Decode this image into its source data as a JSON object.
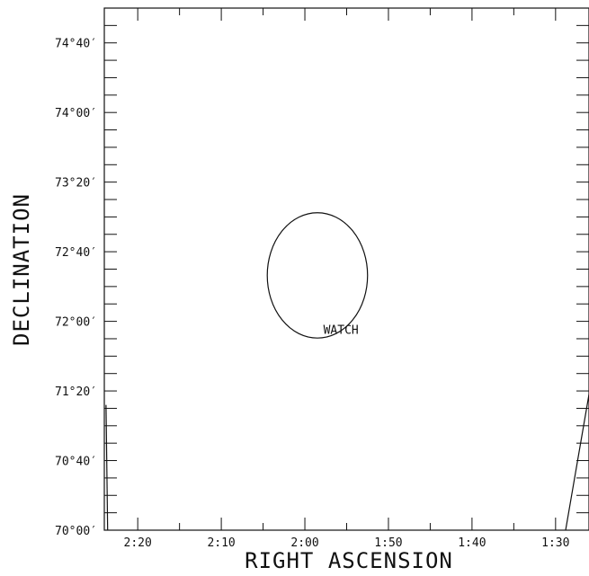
{
  "chart_data": {
    "type": "scatter",
    "xlabel": "RIGHT ASCENSION",
    "ylabel": "DECLINATION",
    "x_ticks": [
      {
        "value": 140,
        "label": "2:20"
      },
      {
        "value": 130,
        "label": "2:10"
      },
      {
        "value": 120,
        "label": "2:00"
      },
      {
        "value": 110,
        "label": "1:50"
      },
      {
        "value": 100,
        "label": "1:40"
      },
      {
        "value": 90,
        "label": "1:30"
      }
    ],
    "x_minor_step": 5,
    "xlim": [
      144,
      86
    ],
    "y_ticks": [
      {
        "value": 70.0,
        "label": "70°00′"
      },
      {
        "value": 70.66667,
        "label": "70°40′"
      },
      {
        "value": 71.33333,
        "label": "71°20′"
      },
      {
        "value": 72.0,
        "label": "72°00′"
      },
      {
        "value": 72.66667,
        "label": "72°40′"
      },
      {
        "value": 73.33333,
        "label": "73°20′"
      },
      {
        "value": 74.0,
        "label": "74°00′"
      },
      {
        "value": 74.66667,
        "label": "74°40′"
      }
    ],
    "y_minor_step": 0.16667,
    "ylim": [
      70.0,
      75.0
    ],
    "grid": false,
    "circle": {
      "ra": 118.5,
      "dec": 72.44,
      "radius_dec": 0.6,
      "radius_ra": 6.0
    },
    "annotations": [
      {
        "text": "WATCH",
        "ra": 118.0,
        "dec": 71.88
      }
    ],
    "boundary_lines": [
      {
        "points": [
          [
            143.8,
            71.2
          ],
          [
            143.6,
            70.0
          ]
        ]
      },
      {
        "points": [
          [
            86.0,
            71.3
          ],
          [
            88.8,
            70.0
          ]
        ]
      }
    ]
  }
}
